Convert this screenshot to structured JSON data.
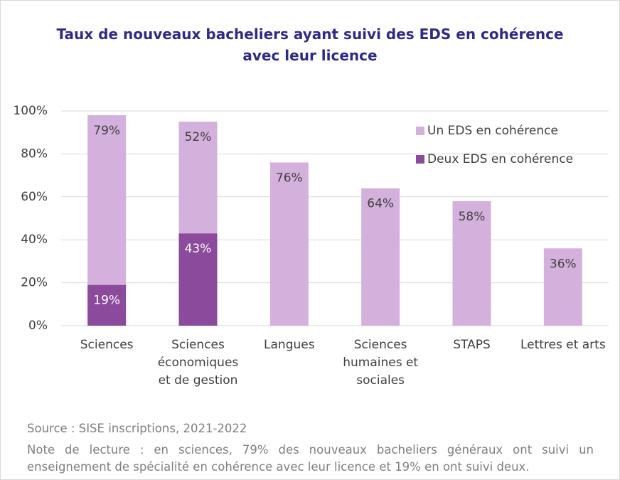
{
  "chart_data": {
    "type": "stacked_bar",
    "title": "Taux de nouveaux bacheliers ayant suivi des EDS en cohérence avec leur licence",
    "categories": [
      "Sciences",
      "Sciences économiques et de gestion",
      "Langues",
      "Sciences humaines et sociales",
      "STAPS",
      "Lettres et arts"
    ],
    "series": [
      {
        "name": "Deux EDS en cohérence",
        "color": "#8b4a9c",
        "values": [
          19,
          43,
          null,
          null,
          null,
          null
        ],
        "value_labels": [
          "19%",
          "43%",
          null,
          null,
          null,
          null
        ]
      },
      {
        "name": "Un EDS en cohérence",
        "color": "#d4b0dc",
        "values": [
          79,
          52,
          76,
          64,
          58,
          36
        ],
        "value_labels": [
          "79%",
          "52%",
          "76%",
          "64%",
          "58%",
          "36%"
        ]
      }
    ],
    "ylim": [
      0,
      100
    ],
    "yticks": [
      {
        "value": 0,
        "label": "0%"
      },
      {
        "value": 20,
        "label": "20%"
      },
      {
        "value": 40,
        "label": "40%"
      },
      {
        "value": 60,
        "label": "60%"
      },
      {
        "value": 80,
        "label": "80%"
      },
      {
        "value": 100,
        "label": "100%"
      }
    ],
    "grid": true,
    "legend": "upper right",
    "source": "Source : SISE inscriptions, 2021-2022",
    "note": "Note de lecture : en sciences, 79% des nouveaux bacheliers généraux ont suivi un enseignement de spécialité en cohérence avec leur licence et 19% en ont suivi deux."
  }
}
